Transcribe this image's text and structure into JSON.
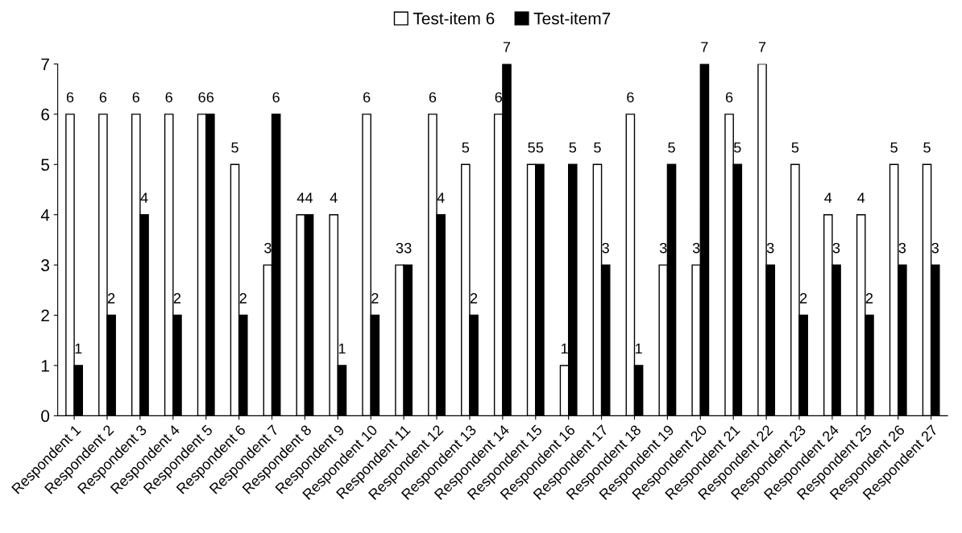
{
  "chart_data": {
    "type": "bar",
    "categories": [
      "Respondent 1",
      "Respondent 2",
      "Respondent 3",
      "Respondent 4",
      "Respondent 5",
      "Respondent 6",
      "Respondent 7",
      "Respondent 8",
      "Respondent 9",
      "Respondent 10",
      "Respondent 11",
      "Respondent 12",
      "Respondent 13",
      "Respondent 14",
      "Respondent 15",
      "Respondent 16",
      "Respondent 17",
      "Respondent 18",
      "Respondent 19",
      "Respondent 20",
      "Respondent 21",
      "Respondent 22",
      "Respondent 23",
      "Respondent 24",
      "Respondent 25",
      "Respondent 26",
      "Respondent 27"
    ],
    "series": [
      {
        "name": "Test-item 6",
        "color": "#ffffff",
        "values": [
          6,
          6,
          6,
          6,
          6,
          5,
          3,
          4,
          4,
          6,
          3,
          6,
          5,
          6,
          5,
          1,
          5,
          6,
          3,
          3,
          6,
          7,
          5,
          4,
          4,
          5,
          5
        ]
      },
      {
        "name": "Test-item7",
        "color": "#000000",
        "values": [
          1,
          2,
          4,
          2,
          6,
          2,
          6,
          4,
          1,
          2,
          3,
          4,
          2,
          7,
          5,
          5,
          3,
          1,
          5,
          7,
          5,
          3,
          2,
          3,
          2,
          3,
          3
        ]
      }
    ],
    "ylim": [
      0,
      7
    ],
    "yticks": [
      0,
      1,
      2,
      3,
      4,
      5,
      6,
      7
    ],
    "data_labels": true,
    "grid": false,
    "legend": "top"
  }
}
